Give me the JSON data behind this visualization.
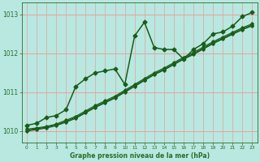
{
  "title": "Graphe pression niveau de la mer (hPa)",
  "bg_color": "#b8e8e0",
  "grid_color": "#e8a0a0",
  "line_color": "#1a5c1a",
  "spine_color": "#2a6c2a",
  "xlim": [
    -0.5,
    23.5
  ],
  "ylim": [
    1009.7,
    1013.3
  ],
  "yticks": [
    1010,
    1011,
    1012,
    1013
  ],
  "xticks": [
    0,
    1,
    2,
    3,
    4,
    5,
    6,
    7,
    8,
    9,
    10,
    11,
    12,
    13,
    14,
    15,
    16,
    17,
    18,
    19,
    20,
    21,
    22,
    23
  ],
  "series": [
    {
      "x": [
        0,
        1,
        2,
        3,
        4,
        5,
        6,
        7,
        8,
        9,
        10,
        11,
        12,
        13,
        14,
        15,
        16,
        17,
        18,
        19,
        20,
        21,
        22,
        23
      ],
      "y": [
        1010.15,
        1010.2,
        1010.35,
        1010.4,
        1010.55,
        1011.15,
        1011.35,
        1011.5,
        1011.55,
        1011.6,
        1011.2,
        1012.45,
        1012.8,
        1012.15,
        1012.1,
        1012.1,
        1011.85,
        1012.1,
        1012.25,
        1012.5,
        1012.55,
        1012.7,
        1012.95,
        1013.05
      ],
      "marker": "D",
      "markersize": 2.5,
      "linewidth": 1.1
    },
    {
      "x": [
        0,
        1,
        2,
        3,
        4,
        5,
        6,
        7,
        8,
        9,
        10,
        11,
        12,
        13,
        14,
        15,
        16,
        17,
        18,
        19,
        20,
        21,
        22,
        23
      ],
      "y": [
        1010.05,
        1010.08,
        1010.12,
        1010.18,
        1010.28,
        1010.38,
        1010.52,
        1010.66,
        1010.78,
        1010.9,
        1011.05,
        1011.2,
        1011.35,
        1011.5,
        1011.62,
        1011.76,
        1011.9,
        1012.02,
        1012.16,
        1012.3,
        1012.42,
        1012.54,
        1012.66,
        1012.76
      ],
      "marker": "D",
      "markersize": 1.8,
      "linewidth": 0.9
    },
    {
      "x": [
        0,
        1,
        2,
        3,
        4,
        5,
        6,
        7,
        8,
        9,
        10,
        11,
        12,
        13,
        14,
        15,
        16,
        17,
        18,
        19,
        20,
        21,
        22,
        23
      ],
      "y": [
        1010.02,
        1010.06,
        1010.1,
        1010.16,
        1010.25,
        1010.35,
        1010.49,
        1010.63,
        1010.75,
        1010.87,
        1011.02,
        1011.17,
        1011.32,
        1011.47,
        1011.59,
        1011.73,
        1011.87,
        1011.99,
        1012.13,
        1012.27,
        1012.39,
        1012.51,
        1012.63,
        1012.73
      ],
      "marker": "D",
      "markersize": 1.8,
      "linewidth": 0.9
    },
    {
      "x": [
        0,
        1,
        2,
        3,
        4,
        5,
        6,
        7,
        8,
        9,
        10,
        11,
        12,
        13,
        14,
        15,
        16,
        17,
        18,
        19,
        20,
        21,
        22,
        23
      ],
      "y": [
        1010.0,
        1010.04,
        1010.08,
        1010.14,
        1010.23,
        1010.33,
        1010.47,
        1010.61,
        1010.73,
        1010.85,
        1011.0,
        1011.15,
        1011.3,
        1011.45,
        1011.57,
        1011.71,
        1011.85,
        1011.97,
        1012.11,
        1012.25,
        1012.37,
        1012.49,
        1012.61,
        1012.71
      ],
      "marker": "D",
      "markersize": 1.8,
      "linewidth": 0.9
    }
  ]
}
